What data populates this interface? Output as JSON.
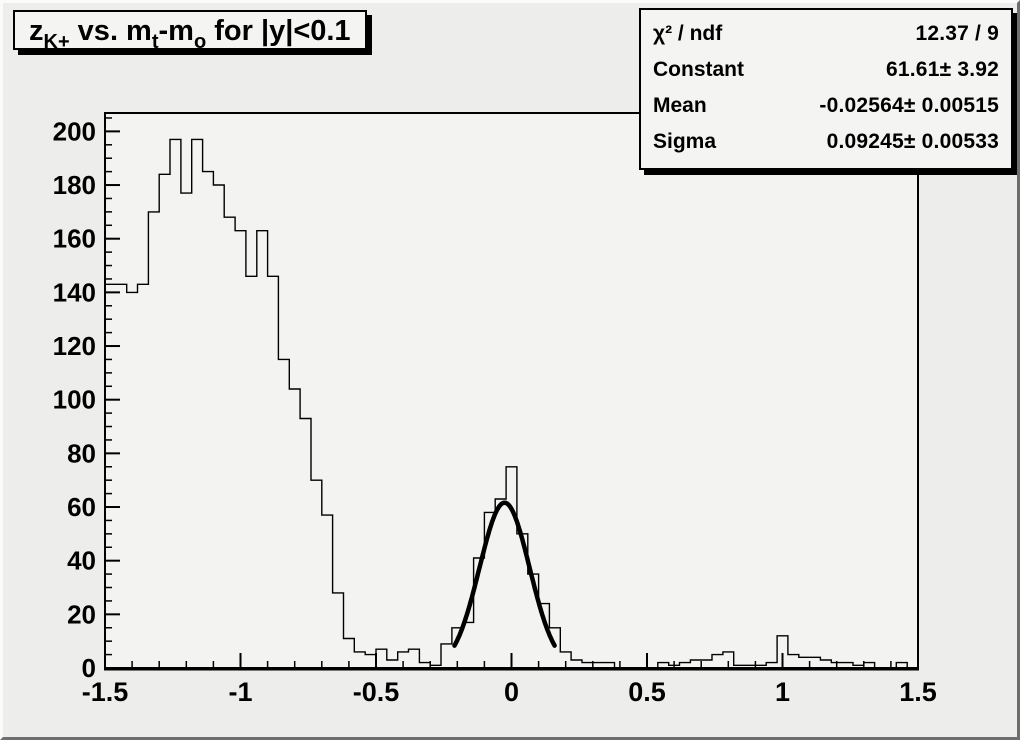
{
  "canvas": {
    "bg_color": "#ededec",
    "frame_fill": "#f3f3f2",
    "box_fill": "#f4f4f3",
    "line_color": "#000000",
    "bevel_light": "#fbfbfb",
    "bevel_dark": "#6e6e6e"
  },
  "title_box": {
    "plain": "zK+ vs. mt-mo for |y|<0.1",
    "segments": [
      {
        "text": "z"
      },
      {
        "text": "K+",
        "sub": true
      },
      {
        "text": " vs. m"
      },
      {
        "text": "t",
        "sub": true
      },
      {
        "text": "-m"
      },
      {
        "text": "o",
        "sub": true
      },
      {
        "text": " for |y|<0.1"
      }
    ]
  },
  "stats_box": {
    "rows": [
      {
        "label": "χ² / ndf",
        "value": "12.37 / 9"
      },
      {
        "label": "Constant",
        "value": "61.61± 3.92"
      },
      {
        "label": "Mean",
        "value": "-0.02564± 0.00515"
      },
      {
        "label": "Sigma",
        "value": "0.09245± 0.00533"
      }
    ]
  },
  "chart_data": {
    "type": "histogram",
    "title": "zK+ vs. mt-mo for |y|<0.1",
    "xlabel": "",
    "ylabel": "",
    "x_range": [
      -1.5,
      1.5
    ],
    "ylim": [
      0,
      206.85
    ],
    "bin_start": -1.5,
    "bin_width": 0.04,
    "n_bins": 75,
    "values": [
      143,
      143,
      140,
      143,
      170,
      184,
      197,
      177,
      197,
      185,
      180,
      168,
      163,
      146,
      163,
      146,
      115,
      104,
      93,
      70,
      57,
      28,
      11,
      6,
      5,
      7,
      3,
      6,
      7,
      2,
      1,
      9,
      15,
      17,
      41,
      58,
      63,
      75,
      50,
      35,
      24,
      15,
      6,
      3,
      2,
      2,
      2,
      0,
      0,
      0,
      0,
      2,
      1,
      2,
      3,
      3,
      5,
      6,
      1,
      1,
      1,
      2,
      12,
      5,
      4,
      4,
      3,
      2,
      2,
      1,
      2,
      0,
      0,
      2,
      0
    ],
    "x_tick_labels": [
      "-1.5",
      "-1",
      "-0.5",
      "0",
      "0.5",
      "1",
      "1.5"
    ],
    "y_tick_labels": [
      "0",
      "20",
      "40",
      "60",
      "80",
      "100",
      "120",
      "140",
      "160",
      "180",
      "200"
    ],
    "x_major_step": 0.5,
    "x_minor_step": 0.1,
    "y_major_step": 20,
    "y_minor_step": 5,
    "grid": false,
    "legend": "none",
    "fit": {
      "type": "gaussian",
      "constant": 61.61,
      "constant_err": 3.92,
      "mean": -0.02564,
      "mean_err": 0.00515,
      "sigma": 0.09245,
      "sigma_err": 0.00533,
      "chi2": 12.37,
      "ndf": 9,
      "draw_range": [
        -0.2105,
        0.1592
      ]
    }
  }
}
